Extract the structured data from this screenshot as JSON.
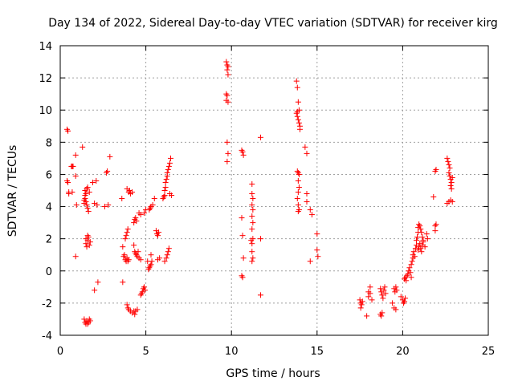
{
  "chart_data": {
    "type": "scatter",
    "title": "Day 134 of 2022, Sidereal Day-to-day VTEC variation (SDTVAR) for receiver kirg",
    "xlabel": "GPS time / hours",
    "ylabel": "SDTVAR / TECUs",
    "xlim": [
      0,
      25
    ],
    "ylim": [
      -4,
      14
    ],
    "x_ticks": [
      0,
      5,
      10,
      15,
      20,
      25
    ],
    "y_ticks": [
      -4,
      -2,
      0,
      2,
      4,
      6,
      8,
      10,
      12,
      14
    ],
    "grid": true,
    "marker": "plus",
    "color": "#ff0000",
    "series": [
      {
        "name": "SDTVAR",
        "points": [
          [
            0.4,
            8.8
          ],
          [
            0.45,
            8.7
          ],
          [
            0.4,
            5.6
          ],
          [
            0.45,
            5.5
          ],
          [
            0.5,
            4.9
          ],
          [
            0.5,
            4.8
          ],
          [
            0.7,
            4.9
          ],
          [
            0.65,
            6.5
          ],
          [
            0.7,
            6.5
          ],
          [
            0.75,
            6.5
          ],
          [
            0.9,
            7.2
          ],
          [
            0.9,
            5.9
          ],
          [
            0.95,
            4.1
          ],
          [
            0.9,
            0.9
          ],
          [
            1.3,
            7.7
          ],
          [
            1.4,
            4.4
          ],
          [
            1.4,
            4.2
          ],
          [
            1.45,
            5.0
          ],
          [
            1.45,
            4.7
          ],
          [
            1.45,
            4.5
          ],
          [
            1.5,
            4.8
          ],
          [
            1.5,
            4.3
          ],
          [
            1.55,
            5.1
          ],
          [
            1.55,
            4.1
          ],
          [
            1.6,
            3.9
          ],
          [
            1.6,
            5.2
          ],
          [
            1.65,
            3.7
          ],
          [
            1.7,
            4.9
          ],
          [
            1.5,
            2.0
          ],
          [
            1.5,
            1.7
          ],
          [
            1.55,
            1.5
          ],
          [
            1.6,
            1.9
          ],
          [
            1.65,
            2.1
          ],
          [
            1.7,
            1.6
          ],
          [
            1.75,
            1.8
          ],
          [
            1.6,
            2.2
          ],
          [
            1.4,
            -3.0
          ],
          [
            1.45,
            -3.2
          ],
          [
            1.5,
            -3.3
          ],
          [
            1.55,
            -3.1
          ],
          [
            1.6,
            -3.3
          ],
          [
            1.65,
            -3.2
          ],
          [
            1.7,
            -3.0
          ],
          [
            1.75,
            -3.1
          ],
          [
            1.9,
            5.5
          ],
          [
            2.0,
            4.2
          ],
          [
            2.1,
            5.6
          ],
          [
            2.15,
            4.1
          ],
          [
            2.0,
            -1.2
          ],
          [
            2.2,
            -0.7
          ],
          [
            2.6,
            4.0
          ],
          [
            2.7,
            6.1
          ],
          [
            2.75,
            6.2
          ],
          [
            2.8,
            4.1
          ],
          [
            2.9,
            7.1
          ],
          [
            3.6,
            4.5
          ],
          [
            3.65,
            1.5
          ],
          [
            3.65,
            -0.7
          ],
          [
            3.7,
            0.9
          ],
          [
            3.75,
            1.0
          ],
          [
            3.8,
            0.7
          ],
          [
            3.85,
            0.6
          ],
          [
            3.9,
            0.8
          ],
          [
            3.95,
            0.6
          ],
          [
            4.0,
            0.7
          ],
          [
            3.8,
            2.0
          ],
          [
            3.85,
            2.2
          ],
          [
            3.9,
            2.4
          ],
          [
            3.95,
            2.6
          ],
          [
            3.9,
            5.1
          ],
          [
            4.0,
            4.9
          ],
          [
            4.05,
            5.0
          ],
          [
            4.1,
            4.8
          ],
          [
            4.2,
            4.9
          ],
          [
            3.9,
            -2.1
          ],
          [
            3.95,
            -2.3
          ],
          [
            4.0,
            -2.4
          ],
          [
            4.1,
            -2.5
          ],
          [
            4.2,
            -2.6
          ],
          [
            4.3,
            -2.5
          ],
          [
            4.35,
            -2.7
          ],
          [
            4.4,
            -2.5
          ],
          [
            4.5,
            -2.4
          ],
          [
            4.3,
            3.0
          ],
          [
            4.35,
            3.2
          ],
          [
            4.4,
            3.3
          ],
          [
            4.45,
            3.1
          ],
          [
            4.6,
            3.6
          ],
          [
            4.7,
            3.5
          ],
          [
            4.3,
            1.6
          ],
          [
            4.35,
            1.2
          ],
          [
            4.4,
            1.1
          ],
          [
            4.45,
            1.0
          ],
          [
            4.5,
            0.9
          ],
          [
            4.55,
            1.2
          ],
          [
            4.6,
            0.8
          ],
          [
            4.7,
            0.7
          ],
          [
            4.7,
            -1.5
          ],
          [
            4.75,
            -1.4
          ],
          [
            4.8,
            -1.3
          ],
          [
            4.85,
            -1.1
          ],
          [
            4.9,
            -1.0
          ],
          [
            4.95,
            -1.2
          ],
          [
            4.9,
            3.6
          ],
          [
            5.0,
            3.8
          ],
          [
            5.1,
            0.6
          ],
          [
            5.15,
            0.1
          ],
          [
            5.2,
            0.2
          ],
          [
            5.25,
            0.3
          ],
          [
            5.3,
            0.4
          ],
          [
            5.35,
            0.6
          ],
          [
            5.3,
            1.0
          ],
          [
            5.2,
            3.8
          ],
          [
            5.25,
            3.9
          ],
          [
            5.3,
            4.0
          ],
          [
            5.4,
            4.1
          ],
          [
            5.5,
            4.5
          ],
          [
            5.6,
            2.5
          ],
          [
            5.65,
            2.3
          ],
          [
            5.7,
            2.2
          ],
          [
            5.75,
            2.4
          ],
          [
            5.7,
            0.7
          ],
          [
            5.8,
            0.8
          ],
          [
            6.0,
            4.5
          ],
          [
            6.05,
            4.6
          ],
          [
            6.1,
            4.7
          ],
          [
            6.1,
            5.0
          ],
          [
            6.15,
            5.2
          ],
          [
            6.15,
            5.5
          ],
          [
            6.2,
            5.7
          ],
          [
            6.25,
            5.9
          ],
          [
            6.25,
            6.1
          ],
          [
            6.3,
            6.3
          ],
          [
            6.35,
            6.5
          ],
          [
            6.4,
            6.7
          ],
          [
            6.45,
            7.0
          ],
          [
            6.1,
            0.6
          ],
          [
            6.2,
            0.8
          ],
          [
            6.25,
            1.0
          ],
          [
            6.3,
            1.2
          ],
          [
            6.35,
            1.4
          ],
          [
            6.4,
            4.8
          ],
          [
            6.5,
            4.7
          ],
          [
            9.7,
            13.0
          ],
          [
            9.75,
            12.8
          ],
          [
            9.8,
            12.7
          ],
          [
            9.75,
            12.5
          ],
          [
            9.8,
            12.2
          ],
          [
            9.7,
            11.0
          ],
          [
            9.75,
            10.9
          ],
          [
            9.7,
            10.6
          ],
          [
            9.8,
            10.5
          ],
          [
            9.75,
            8.0
          ],
          [
            9.8,
            7.3
          ],
          [
            9.75,
            6.8
          ],
          [
            10.6,
            7.5
          ],
          [
            10.65,
            7.4
          ],
          [
            10.7,
            7.2
          ],
          [
            10.6,
            3.3
          ],
          [
            10.65,
            2.2
          ],
          [
            10.7,
            0.8
          ],
          [
            10.6,
            -0.3
          ],
          [
            10.65,
            -0.4
          ],
          [
            11.2,
            5.4
          ],
          [
            11.2,
            4.8
          ],
          [
            11.25,
            4.5
          ],
          [
            11.2,
            4.1
          ],
          [
            11.25,
            3.8
          ],
          [
            11.2,
            3.4
          ],
          [
            11.25,
            3.0
          ],
          [
            11.2,
            2.6
          ],
          [
            11.15,
            1.9
          ],
          [
            11.2,
            1.7
          ],
          [
            11.25,
            2.0
          ],
          [
            11.2,
            1.2
          ],
          [
            11.25,
            0.8
          ],
          [
            11.2,
            0.6
          ],
          [
            11.7,
            8.3
          ],
          [
            11.7,
            2.0
          ],
          [
            11.7,
            -1.5
          ],
          [
            13.8,
            11.8
          ],
          [
            13.85,
            11.4
          ],
          [
            13.9,
            10.5
          ],
          [
            13.95,
            10.0
          ],
          [
            13.8,
            9.8
          ],
          [
            13.85,
            9.6
          ],
          [
            13.9,
            9.4
          ],
          [
            13.95,
            9.2
          ],
          [
            14.0,
            9.0
          ],
          [
            13.85,
            9.9
          ],
          [
            14.0,
            8.8
          ],
          [
            13.85,
            6.2
          ],
          [
            13.9,
            6.1
          ],
          [
            13.95,
            6.0
          ],
          [
            13.9,
            5.6
          ],
          [
            13.95,
            5.2
          ],
          [
            13.9,
            4.9
          ],
          [
            13.85,
            4.5
          ],
          [
            13.9,
            4.1
          ],
          [
            13.95,
            3.8
          ],
          [
            13.9,
            3.7
          ],
          [
            14.3,
            7.7
          ],
          [
            14.4,
            7.3
          ],
          [
            14.4,
            4.8
          ],
          [
            14.4,
            4.3
          ],
          [
            14.6,
            3.8
          ],
          [
            14.7,
            3.5
          ],
          [
            14.6,
            0.6
          ],
          [
            15.0,
            2.3
          ],
          [
            15.0,
            1.3
          ],
          [
            15.05,
            0.9
          ],
          [
            17.5,
            -1.8
          ],
          [
            17.55,
            -2.0
          ],
          [
            17.6,
            -2.1
          ],
          [
            17.65,
            -1.9
          ],
          [
            17.55,
            -2.3
          ],
          [
            17.9,
            -2.8
          ],
          [
            18.0,
            -1.3
          ],
          [
            18.0,
            -1.6
          ],
          [
            18.1,
            -1.4
          ],
          [
            18.1,
            -1.0
          ],
          [
            18.2,
            -1.8
          ],
          [
            18.7,
            -2.7
          ],
          [
            18.75,
            -2.8
          ],
          [
            18.8,
            -2.6
          ],
          [
            18.7,
            -1.1
          ],
          [
            18.75,
            -1.3
          ],
          [
            18.8,
            -1.5
          ],
          [
            18.85,
            -1.7
          ],
          [
            18.9,
            -1.2
          ],
          [
            18.95,
            -1.0
          ],
          [
            19.0,
            -1.4
          ],
          [
            19.4,
            -2.0
          ],
          [
            19.5,
            -2.3
          ],
          [
            19.6,
            -2.4
          ],
          [
            19.5,
            -1.1
          ],
          [
            19.55,
            -1.3
          ],
          [
            19.6,
            -1.0
          ],
          [
            19.65,
            -1.2
          ],
          [
            19.9,
            -1.6
          ],
          [
            20.0,
            -1.8
          ],
          [
            20.05,
            -2.0
          ],
          [
            20.1,
            -1.9
          ],
          [
            20.15,
            -1.7
          ],
          [
            20.1,
            -0.5
          ],
          [
            20.15,
            -0.4
          ],
          [
            20.2,
            -0.6
          ],
          [
            20.25,
            -0.3
          ],
          [
            20.3,
            -0.2
          ],
          [
            20.35,
            0.0
          ],
          [
            20.4,
            0.2
          ],
          [
            20.45,
            -0.1
          ],
          [
            20.5,
            0.4
          ],
          [
            20.5,
            -0.4
          ],
          [
            20.55,
            0.6
          ],
          [
            20.6,
            0.8
          ],
          [
            20.6,
            1.0
          ],
          [
            20.65,
            1.2
          ],
          [
            20.7,
            0.9
          ],
          [
            20.75,
            1.4
          ],
          [
            20.8,
            1.6
          ],
          [
            20.8,
            1.9
          ],
          [
            20.85,
            2.1
          ],
          [
            20.9,
            2.4
          ],
          [
            20.9,
            2.7
          ],
          [
            20.95,
            2.9
          ],
          [
            21.0,
            2.8
          ],
          [
            21.05,
            2.6
          ],
          [
            21.1,
            2.4
          ],
          [
            21.15,
            2.1
          ],
          [
            21.2,
            1.9
          ],
          [
            20.9,
            1.3
          ],
          [
            20.95,
            1.5
          ],
          [
            21.0,
            1.7
          ],
          [
            21.05,
            1.4
          ],
          [
            21.1,
            1.2
          ],
          [
            21.15,
            1.6
          ],
          [
            21.2,
            1.8
          ],
          [
            21.3,
            1.5
          ],
          [
            21.4,
            2.3
          ],
          [
            21.45,
            2.0
          ],
          [
            21.8,
            4.6
          ],
          [
            21.9,
            6.2
          ],
          [
            21.95,
            6.3
          ],
          [
            21.9,
            2.8
          ],
          [
            21.95,
            2.9
          ],
          [
            21.9,
            2.5
          ],
          [
            22.6,
            7.0
          ],
          [
            22.65,
            6.8
          ],
          [
            22.7,
            6.6
          ],
          [
            22.75,
            6.4
          ],
          [
            22.7,
            6.1
          ],
          [
            22.75,
            5.9
          ],
          [
            22.8,
            5.7
          ],
          [
            22.85,
            5.5
          ],
          [
            22.8,
            5.3
          ],
          [
            22.85,
            5.1
          ],
          [
            22.9,
            5.8
          ],
          [
            22.6,
            4.2
          ],
          [
            22.7,
            4.3
          ],
          [
            22.8,
            4.4
          ],
          [
            22.9,
            4.3
          ]
        ]
      }
    ]
  }
}
